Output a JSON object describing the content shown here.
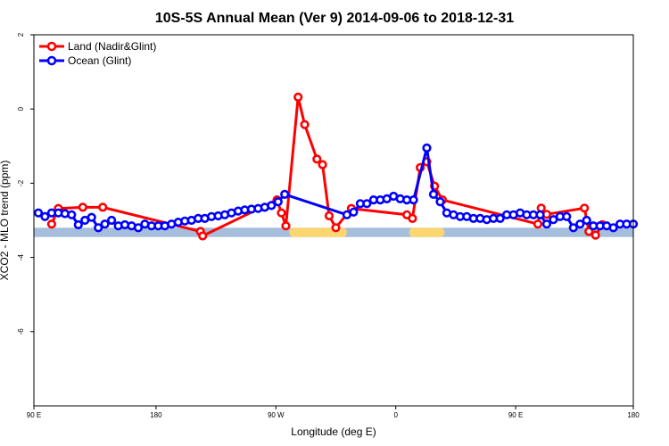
{
  "chart_data": {
    "type": "line",
    "title": "10S-5S Annual Mean (Ver 9)   2014-09-06 to 2018-12-31",
    "xlabel": "Longitude (deg E)",
    "ylabel": "XCO2 - MLO trend (ppm)",
    "xlim": [
      0,
      270
    ],
    "ylim": [
      -8,
      2
    ],
    "x_ticks": [
      {
        "value": 0,
        "label": "90 E"
      },
      {
        "value": 55,
        "label": "180"
      },
      {
        "value": 109,
        "label": "90 W"
      },
      {
        "value": 163,
        "label": "0"
      },
      {
        "value": 217,
        "label": "90 E"
      },
      {
        "value": 270,
        "label": "180"
      }
    ],
    "y_ticks": [
      {
        "value": 2,
        "label": "2"
      },
      {
        "value": 0,
        "label": "0"
      },
      {
        "value": -2,
        "label": "-2"
      },
      {
        "value": -4,
        "label": "-4"
      },
      {
        "value": -6,
        "label": "-6"
      }
    ],
    "legend_position": "top-left",
    "grid": false,
    "land_mask": {
      "y_range": [
        -3.45,
        -3.2
      ],
      "ocean_color": "#a4bedc",
      "land_color": "#fbd671",
      "land_segments": [
        [
          115,
          141
        ],
        [
          169,
          185
        ]
      ]
    },
    "series": [
      {
        "name": "Land (Nadir&Glint)",
        "color": "#ff0000",
        "x": [
          8,
          11,
          22,
          31,
          75,
          76,
          109.5,
          111.5,
          113.5,
          119,
          122,
          127.5,
          130,
          133,
          136,
          143,
          168,
          170.5,
          174,
          177,
          180.5,
          184,
          227,
          228.5,
          231,
          248,
          250,
          253,
          256
        ],
        "y": [
          -3.1,
          -2.68,
          -2.65,
          -2.65,
          -3.3,
          -3.42,
          -2.45,
          -2.8,
          -3.15,
          0.32,
          -0.42,
          -1.35,
          -1.5,
          -2.88,
          -3.2,
          -2.68,
          -2.85,
          -2.95,
          -1.58,
          -1.42,
          -2.08,
          -2.45,
          -3.1,
          -2.67,
          -2.84,
          -2.67,
          -3.3,
          -3.4,
          -3.12
        ]
      },
      {
        "name": "Ocean (Glint)",
        "color": "#0000ff",
        "x": [
          2,
          5,
          8,
          11,
          14,
          17,
          20,
          23,
          26,
          29,
          32,
          35,
          38,
          41,
          44,
          47,
          50,
          53,
          56,
          59,
          62,
          65,
          68,
          71,
          74,
          77,
          80,
          83,
          86,
          89,
          92,
          95,
          98,
          101,
          104,
          107,
          110,
          113,
          141,
          144,
          147,
          150,
          153,
          156,
          159,
          162,
          165,
          168,
          171,
          177,
          180,
          183,
          186,
          189,
          192,
          195,
          198,
          201,
          204,
          207,
          210,
          213,
          216,
          219,
          222,
          225,
          228,
          231,
          234,
          237,
          240,
          243,
          246,
          249,
          252,
          255,
          258,
          261,
          264,
          267,
          270
        ],
        "y": [
          -2.8,
          -2.9,
          -2.8,
          -2.8,
          -2.82,
          -2.85,
          -3.12,
          -3.0,
          -2.92,
          -3.2,
          -3.1,
          -3.0,
          -3.15,
          -3.12,
          -3.15,
          -3.2,
          -3.1,
          -3.15,
          -3.15,
          -3.15,
          -3.1,
          -3.05,
          -3.02,
          -3.0,
          -2.95,
          -2.95,
          -2.9,
          -2.88,
          -2.85,
          -2.8,
          -2.75,
          -2.72,
          -2.7,
          -2.68,
          -2.65,
          -2.6,
          -2.5,
          -2.3,
          -2.85,
          -2.78,
          -2.55,
          -2.55,
          -2.45,
          -2.45,
          -2.42,
          -2.35,
          -2.42,
          -2.45,
          -2.45,
          -1.05,
          -2.3,
          -2.5,
          -2.8,
          -2.85,
          -2.9,
          -2.9,
          -2.95,
          -2.95,
          -2.98,
          -2.95,
          -2.95,
          -2.85,
          -2.85,
          -2.8,
          -2.85,
          -2.85,
          -2.85,
          -3.1,
          -2.98,
          -2.9,
          -2.9,
          -3.2,
          -3.1,
          -3.0,
          -3.15,
          -3.15,
          -3.15,
          -3.2,
          -3.1,
          -3.1,
          -3.1
        ]
      }
    ]
  }
}
